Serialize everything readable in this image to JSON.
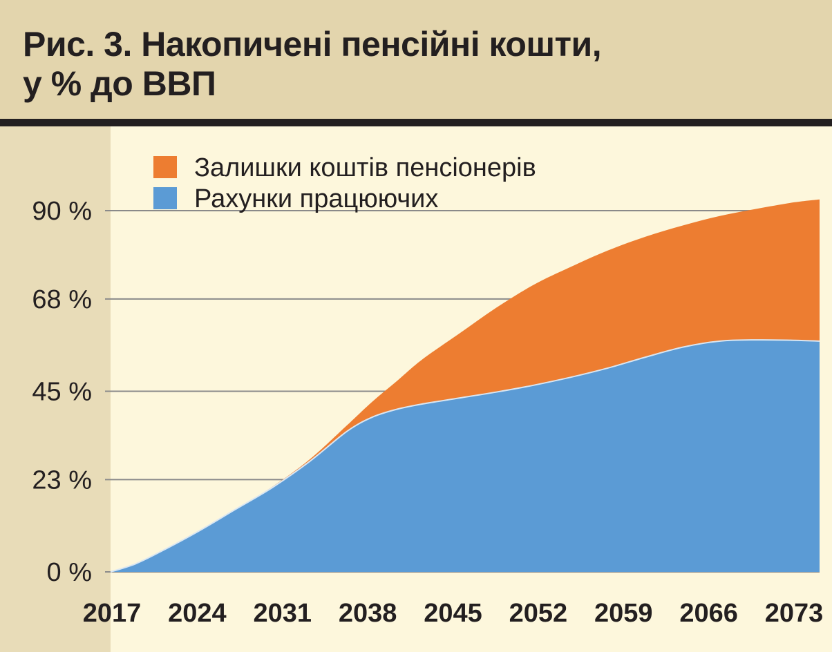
{
  "header": {
    "title_line1": "Рис. 3. Накопичені пенсійні кошти,",
    "title_line2": "у % до ВВП"
  },
  "chart_data": {
    "type": "area",
    "stacked": true,
    "x": [
      2017,
      2019,
      2021,
      2024,
      2027,
      2030,
      2033,
      2036,
      2038,
      2040,
      2042,
      2045,
      2048,
      2051,
      2054,
      2057,
      2060,
      2063,
      2066,
      2069,
      2072,
      2074
    ],
    "series": [
      {
        "name": "Рахунки працюючих",
        "color": "#5b9bd5",
        "values": [
          0,
          2,
          5,
          10,
          15.5,
          21,
          27.5,
          35,
          38.5,
          40.5,
          41.8,
          43.3,
          44.8,
          46.5,
          48.5,
          50.8,
          53.5,
          56,
          57.5,
          57.8,
          57.7,
          57.5
        ]
      },
      {
        "name": "Залишки коштів пенсіонерів",
        "color": "#ed7d31",
        "values": [
          0,
          0,
          0,
          0,
          0,
          0.2,
          0.5,
          1.5,
          3.8,
          7,
          11,
          16,
          21,
          25,
          27.5,
          29.3,
          30,
          30.3,
          31.2,
          32.7,
          34.4,
          35.3
        ]
      }
    ],
    "yticks": [
      0,
      23,
      45,
      68,
      90
    ],
    "ytick_labels": [
      "0 %",
      "23 %",
      "45 %",
      "68 %",
      "90 %"
    ],
    "ylim": [
      0,
      90
    ],
    "xticks": [
      "2017",
      "2024",
      "2031",
      "2038",
      "2045",
      "2052",
      "2059",
      "2066",
      "2073"
    ],
    "xlim": [
      2017,
      2074
    ],
    "grid": true,
    "legend": {
      "position": "top-left",
      "items": [
        "Залишки коштів пенсіонерів",
        "Рахунки працюючих"
      ]
    }
  }
}
